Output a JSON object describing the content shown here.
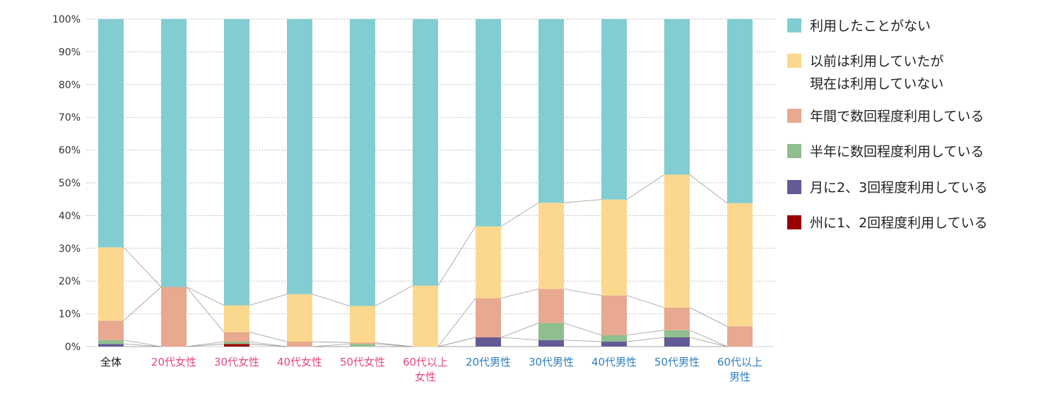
{
  "chart_data": {
    "type": "bar",
    "stacked": true,
    "y_tick_labels": [
      "0%",
      "10%",
      "20%",
      "30%",
      "40%",
      "50%",
      "60%",
      "70%",
      "80%",
      "90%",
      "100%"
    ],
    "ylim": [
      0,
      100
    ],
    "grid": true,
    "legend_position": "right",
    "categories": [
      {
        "label": "全体",
        "color": "#111111"
      },
      {
        "label": "20代女性",
        "color": "#e6467a"
      },
      {
        "label": "30代女性",
        "color": "#e6467a"
      },
      {
        "label": "40代女性",
        "color": "#e6467a"
      },
      {
        "label": "50代女性",
        "color": "#e6467a"
      },
      {
        "label": "60代以上\n女性",
        "color": "#e6467a"
      },
      {
        "label": "20代男性",
        "color": "#2f7fc0"
      },
      {
        "label": "30代男性",
        "color": "#2f7fc0"
      },
      {
        "label": "40代男性",
        "color": "#2f7fc0"
      },
      {
        "label": "50代男性",
        "color": "#2f7fc0"
      },
      {
        "label": "60代以上\n男性",
        "color": "#2f7fc0"
      }
    ],
    "series": [
      {
        "name": "州に1、2回程度利用している",
        "color": "#990000",
        "values": [
          0,
          0,
          0.8,
          0,
          0,
          0,
          0,
          0,
          0,
          0,
          0
        ]
      },
      {
        "name": "月に2、3回程度利用している",
        "color": "#635a96",
        "values": [
          0.8,
          0,
          0,
          0,
          0,
          0,
          2.8,
          2,
          1.5,
          2.8,
          0
        ]
      },
      {
        "name": "半年に数回程度利用している",
        "color": "#8fbe8f",
        "values": [
          1.2,
          0,
          0.7,
          0,
          0.8,
          0,
          0,
          5.2,
          2,
          2.2,
          0
        ]
      },
      {
        "name": "年間で数回程度利用している",
        "color": "#e7a98f",
        "values": [
          5.9,
          18.2,
          2.9,
          1.5,
          0.4,
          0,
          12,
          10.4,
          12.1,
          6.9,
          6.2
        ]
      },
      {
        "name": "以前は利用していたが\n現在は利用していない",
        "color": "#fbd88d",
        "values": [
          22.4,
          0,
          8.2,
          14.5,
          11.2,
          18.6,
          21.9,
          26.3,
          29.3,
          40.6,
          37.6
        ]
      },
      {
        "name": "利用したことがない",
        "color": "#82cdd2",
        "values": [
          69.7,
          81.8,
          87.4,
          84,
          87.6,
          81.4,
          63.3,
          56.1,
          55.1,
          47.5,
          56.2
        ]
      }
    ],
    "legend_order": [
      5,
      4,
      3,
      2,
      1,
      0
    ]
  }
}
